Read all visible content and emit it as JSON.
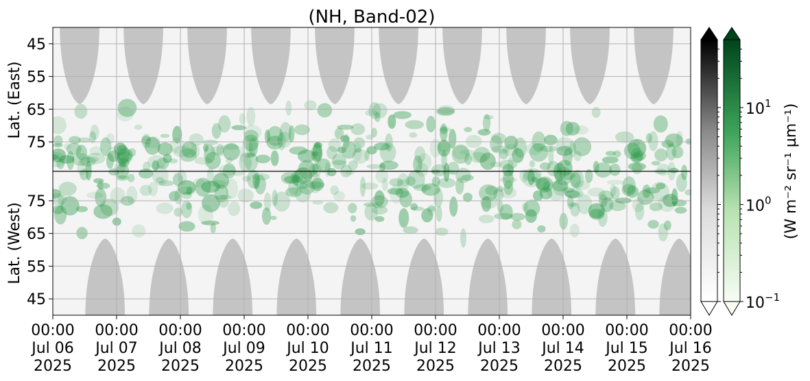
{
  "chart_data": {
    "type": "heatmap",
    "title": "(NH, Band-02)",
    "ylabel_top": "Lat. (East)",
    "ylabel_bottom": "Lat. (West)",
    "y_ticks_top": [
      "45",
      "55",
      "65",
      "75"
    ],
    "y_ticks_bottom": [
      "75",
      "65",
      "55",
      "45"
    ],
    "y_tick_values_top": [
      45,
      55,
      65,
      75
    ],
    "y_tick_values_bottom": [
      75,
      65,
      55,
      45
    ],
    "lat_range_top": [
      40,
      84
    ],
    "lat_range_bottom": [
      84,
      40
    ],
    "x_ticks": [
      {
        "time": "00:00",
        "day": "Jul 06",
        "year": "2025"
      },
      {
        "time": "00:00",
        "day": "Jul 07",
        "year": "2025"
      },
      {
        "time": "00:00",
        "day": "Jul 08",
        "year": "2025"
      },
      {
        "time": "00:00",
        "day": "Jul 09",
        "year": "2025"
      },
      {
        "time": "00:00",
        "day": "Jul 10",
        "year": "2025"
      },
      {
        "time": "00:00",
        "day": "Jul 11",
        "year": "2025"
      },
      {
        "time": "00:00",
        "day": "Jul 12",
        "year": "2025"
      },
      {
        "time": "00:00",
        "day": "Jul 13",
        "year": "2025"
      },
      {
        "time": "00:00",
        "day": "Jul 14",
        "year": "2025"
      },
      {
        "time": "00:00",
        "day": "Jul 15",
        "year": "2025"
      },
      {
        "time": "00:00",
        "day": "Jul 16",
        "year": "2025"
      }
    ],
    "x_range": [
      "2025-07-06T00:00",
      "2025-07-16T00:00"
    ],
    "grid": true,
    "colorbar": {
      "label": "(W m⁻² sr⁻¹ µm⁻¹)",
      "scale": "log",
      "range": [
        0.1,
        50
      ],
      "ticks": [
        {
          "value": 0.1,
          "base": "10",
          "exp": "−1"
        },
        {
          "value": 1,
          "base": "10",
          "exp": "0"
        },
        {
          "value": 10,
          "base": "10",
          "exp": "1"
        }
      ],
      "extend": "both",
      "colormaps": [
        "Greys",
        "Greens"
      ]
    },
    "day_side_shading_color": "#c4c4c4",
    "auroral_color": "#2d9a4a"
  }
}
